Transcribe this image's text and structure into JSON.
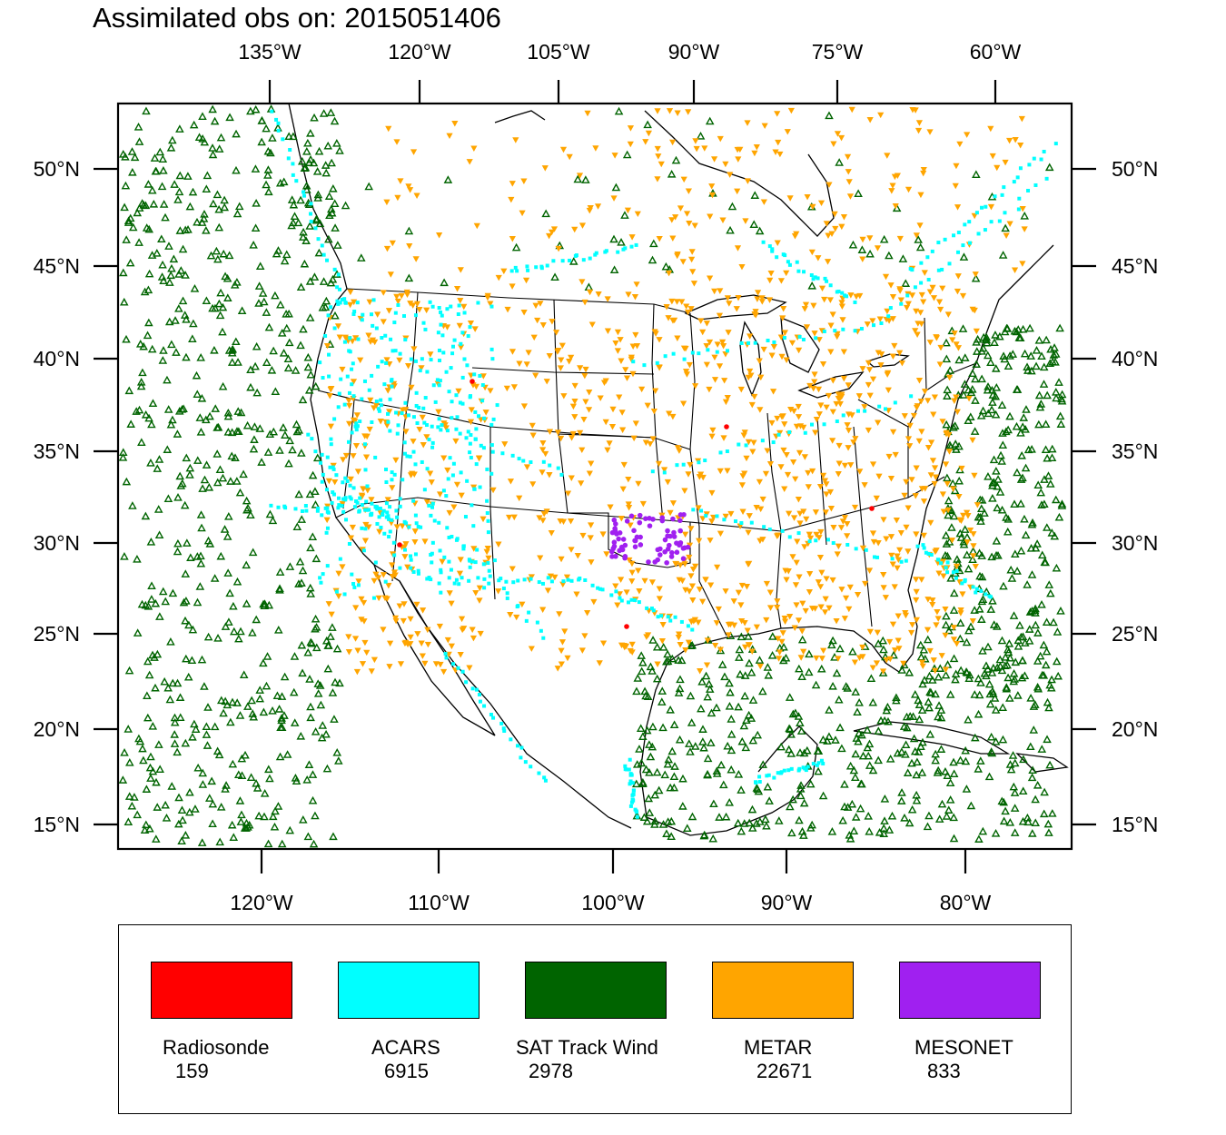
{
  "title": "Assimilated obs on: 2015051406",
  "top_lon_labels": [
    "135°W",
    "120°W",
    "105°W",
    "90°W",
    "75°W",
    "60°W"
  ],
  "bottom_lon_labels": [
    "120°W",
    "110°W",
    "100°W",
    "90°W",
    "80°W"
  ],
  "lat_labels": [
    "50°N",
    "45°N",
    "40°N",
    "35°N",
    "30°N",
    "25°N",
    "20°N",
    "15°N"
  ],
  "colors": {
    "radiosonde": "#ff0000",
    "acars": "#00ffff",
    "sat_track_wind": "#006400",
    "metar": "#ffa500",
    "mesonet": "#a020f0"
  },
  "legend": [
    {
      "label": "Radiosonde",
      "count": "159",
      "color": "#ff0000"
    },
    {
      "label": "ACARS",
      "count": "6915",
      "color": "#00ffff"
    },
    {
      "label": "SAT Track Wind",
      "count": "2978",
      "color": "#006400"
    },
    {
      "label": "METAR",
      "count": "22671",
      "color": "#ffa500"
    },
    {
      "label": "MESONET",
      "count": "833",
      "color": "#a020f0"
    }
  ]
}
